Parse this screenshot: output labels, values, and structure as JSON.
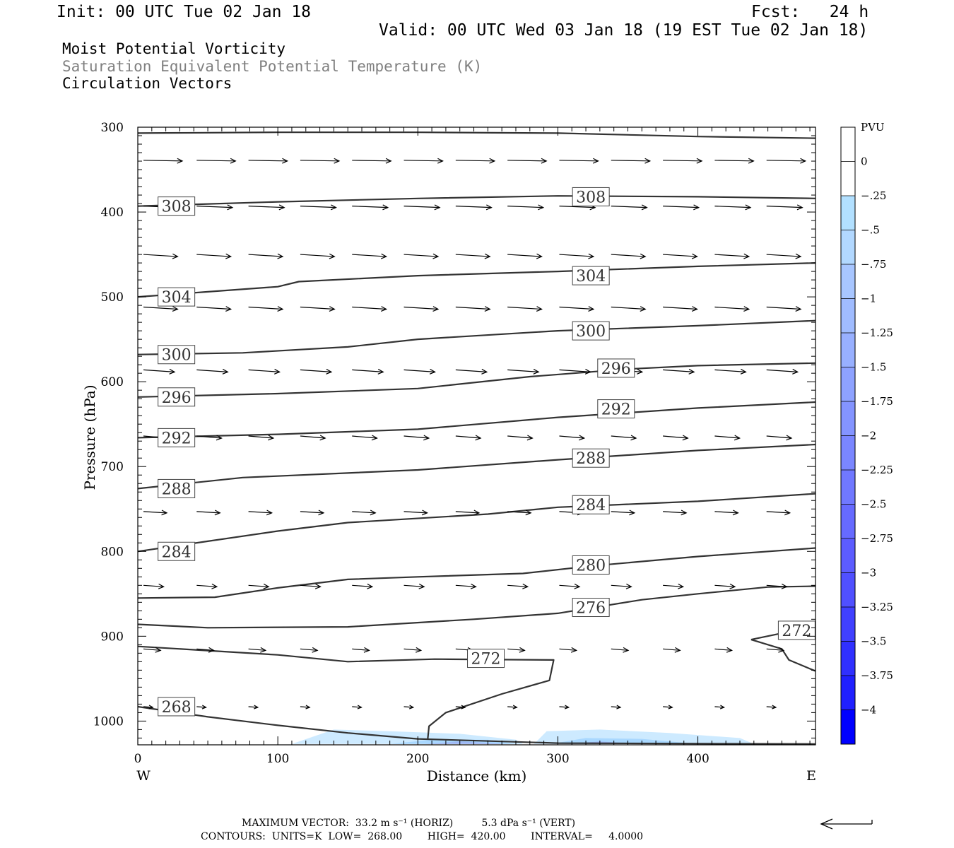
{
  "header": {
    "init": "Init: 00 UTC Tue 02 Jan 18",
    "fcst": "Fcst:   24 h",
    "valid": "Valid: 00 UTC Wed 03 Jan 18 (19 EST Tue 02 Jan 18)",
    "field1": "Moist Potential Vorticity",
    "field2": "Saturation Equivalent Potential Temperature (K)",
    "field3": "Circulation Vectors",
    "field2_color": "#808080"
  },
  "chart_data": {
    "type": "cross-section",
    "xlabel": "Distance (km)",
    "ylabel": "Pressure (hPa)",
    "xlim": [
      0,
      484
    ],
    "ylim": [
      1028,
      300
    ],
    "x_ticks": [
      0,
      100,
      200,
      300,
      400
    ],
    "y_ticks": [
      300,
      400,
      500,
      600,
      700,
      800,
      900,
      1000
    ],
    "x_end_labels": [
      "W",
      "E"
    ],
    "colorbar": {
      "title": "PVU",
      "labels": [
        "0",
        "-.25",
        "-.5",
        "-.75",
        "-1",
        "-1.25",
        "-1.5",
        "-1.75",
        "-2",
        "-2.25",
        "-2.5",
        "-2.75",
        "-3",
        "-3.25",
        "-3.5",
        "-3.75",
        "-4"
      ],
      "colors": [
        "#ffffff",
        "#ffffff",
        "#b2e0ff",
        "#b2d8ff",
        "#a8c6ff",
        "#a0bcff",
        "#98b0ff",
        "#8ea2ff",
        "#8494ff",
        "#7a86ff",
        "#7078ff",
        "#666aff",
        "#5c5cff",
        "#5050ff",
        "#4040ff",
        "#3030ff",
        "#2020ff",
        "#0000ff"
      ]
    },
    "contours": [
      {
        "level": "308",
        "label_at": [
          [
            19,
            393
          ],
          [
            315,
            382
          ]
        ],
        "points": [
          [
            0,
            393
          ],
          [
            100,
            388
          ],
          [
            200,
            384
          ],
          [
            300,
            381
          ],
          [
            400,
            382
          ],
          [
            484,
            384
          ]
        ]
      },
      {
        "level": "",
        "label_at": [],
        "points": [
          [
            0,
            307
          ],
          [
            100,
            306
          ],
          [
            200,
            306
          ],
          [
            300,
            307
          ],
          [
            400,
            311
          ],
          [
            484,
            313
          ]
        ]
      },
      {
        "level": "304",
        "label_at": [
          [
            19,
            500
          ],
          [
            315,
            475
          ]
        ],
        "points": [
          [
            0,
            500
          ],
          [
            50,
            494
          ],
          [
            100,
            488
          ],
          [
            115,
            482
          ],
          [
            200,
            475
          ],
          [
            300,
            470
          ],
          [
            400,
            464
          ],
          [
            484,
            460
          ]
        ]
      },
      {
        "level": "300",
        "label_at": [
          [
            19,
            568
          ],
          [
            315,
            540
          ]
        ],
        "points": [
          [
            0,
            568
          ],
          [
            75,
            566
          ],
          [
            150,
            559
          ],
          [
            200,
            550
          ],
          [
            300,
            540
          ],
          [
            400,
            534
          ],
          [
            484,
            528
          ]
        ]
      },
      {
        "level": "296",
        "label_at": [
          [
            19,
            618
          ],
          [
            333,
            584
          ]
        ],
        "points": [
          [
            0,
            618
          ],
          [
            100,
            614
          ],
          [
            200,
            608
          ],
          [
            280,
            594
          ],
          [
            350,
            585
          ],
          [
            400,
            581
          ],
          [
            484,
            578
          ]
        ]
      },
      {
        "level": "292",
        "label_at": [
          [
            19,
            666
          ],
          [
            333,
            632
          ]
        ],
        "points": [
          [
            0,
            666
          ],
          [
            100,
            662
          ],
          [
            200,
            656
          ],
          [
            300,
            642
          ],
          [
            400,
            631
          ],
          [
            484,
            624
          ]
        ]
      },
      {
        "level": "288",
        "label_at": [
          [
            19,
            726
          ],
          [
            315,
            690
          ]
        ],
        "points": [
          [
            0,
            726
          ],
          [
            75,
            713
          ],
          [
            200,
            704
          ],
          [
            300,
            692
          ],
          [
            400,
            681
          ],
          [
            484,
            674
          ]
        ]
      },
      {
        "level": "284",
        "label_at": [
          [
            19,
            800
          ],
          [
            315,
            745
          ]
        ],
        "points": [
          [
            0,
            800
          ],
          [
            50,
            788
          ],
          [
            100,
            776
          ],
          [
            150,
            766
          ],
          [
            250,
            756
          ],
          [
            300,
            748
          ],
          [
            400,
            741
          ],
          [
            484,
            732
          ]
        ]
      },
      {
        "level": "280",
        "label_at": [
          [
            315,
            816
          ]
        ],
        "points": [
          [
            0,
            855
          ],
          [
            55,
            854
          ],
          [
            100,
            843
          ],
          [
            150,
            833
          ],
          [
            200,
            830
          ],
          [
            275,
            826
          ],
          [
            325,
            817
          ],
          [
            400,
            806
          ],
          [
            484,
            796
          ]
        ]
      },
      {
        "level": "276",
        "label_at": [
          [
            315,
            866
          ]
        ],
        "points": [
          [
            0,
            886
          ],
          [
            50,
            890
          ],
          [
            150,
            889
          ],
          [
            240,
            880
          ],
          [
            300,
            873
          ],
          [
            360,
            857
          ],
          [
            400,
            850
          ],
          [
            450,
            842
          ],
          [
            484,
            841
          ]
        ]
      },
      {
        "level": "272",
        "label_at": [
          [
            240,
            926
          ],
          [
            462,
            893
          ]
        ],
        "points": [
          [
            0,
            912
          ],
          [
            100,
            922
          ],
          [
            150,
            930
          ],
          [
            212,
            927
          ],
          [
            297,
            928
          ],
          [
            294,
            952
          ],
          [
            260,
            968
          ],
          [
            220,
            990
          ],
          [
            208,
            1006
          ],
          [
            207,
            1022
          ]
        ]
      },
      {
        "level": "",
        "label_at": [],
        "points": [
          [
            438,
            904
          ],
          [
            470,
            893
          ],
          [
            484,
            885
          ]
        ]
      },
      {
        "level": "",
        "label_at": [],
        "points": [
          [
            438,
            904
          ],
          [
            460,
            915
          ],
          [
            465,
            928
          ],
          [
            484,
            941
          ]
        ]
      },
      {
        "level": "268",
        "label_at": [
          [
            19,
            983
          ]
        ],
        "points": [
          [
            0,
            983
          ],
          [
            50,
            995
          ],
          [
            100,
            1005
          ],
          [
            150,
            1014
          ],
          [
            200,
            1021
          ],
          [
            300,
            1026
          ],
          [
            484,
            1027
          ]
        ]
      }
    ],
    "vector_rows": [
      {
        "p": 339,
        "x": [
          0,
          38,
          75,
          112,
          149,
          186,
          223,
          260,
          297,
          334,
          371,
          408,
          445
        ],
        "dx": 25,
        "dy": 1
      },
      {
        "p": 393,
        "x": [
          0,
          38,
          75,
          112,
          149,
          186,
          223,
          260,
          297,
          334,
          371,
          408,
          445
        ],
        "dx": 23,
        "dy": 2
      },
      {
        "p": 450,
        "x": [
          0,
          38,
          75,
          112,
          149,
          186,
          223,
          260,
          297,
          334,
          371,
          408,
          445
        ],
        "dx": 22,
        "dy": 3
      },
      {
        "p": 512,
        "x": [
          0,
          38,
          75,
          112,
          149,
          186,
          223,
          260,
          297,
          334,
          371,
          408,
          445
        ],
        "dx": 22,
        "dy": 3
      },
      {
        "p": 586,
        "x": [
          0,
          38,
          75,
          112,
          149,
          186,
          223,
          260,
          297,
          334,
          371,
          408,
          445
        ],
        "dx": 20,
        "dy": 3
      },
      {
        "p": 664,
        "x": [
          0,
          38,
          75,
          112,
          149,
          186,
          223,
          260,
          297,
          334,
          371,
          408,
          445
        ],
        "dx": 16,
        "dy": 3
      },
      {
        "p": 753,
        "x": [
          0,
          38,
          75,
          112,
          149,
          186,
          223,
          260,
          297,
          334,
          371,
          408,
          445
        ],
        "dx": 15,
        "dy": 2
      },
      {
        "p": 840,
        "x": [
          0,
          38,
          75,
          112,
          149,
          186,
          223,
          260,
          297,
          334,
          371,
          408,
          445
        ],
        "dx": 13,
        "dy": 2
      },
      {
        "p": 915,
        "x": [
          0,
          38,
          75,
          112,
          149,
          186,
          223,
          260,
          297,
          334,
          371,
          408,
          445
        ],
        "dx": 11,
        "dy": 2
      },
      {
        "p": 983,
        "x": [
          0,
          38,
          75,
          112,
          149,
          186,
          223,
          260,
          297,
          334,
          371,
          408,
          445
        ],
        "dx": 6,
        "dy": 1
      }
    ],
    "pv_shading": [
      {
        "level": "-.25",
        "color": "#cdeaff",
        "points": [
          [
            110,
            1027
          ],
          [
            140,
            1010
          ],
          [
            180,
            1012
          ],
          [
            230,
            1015
          ],
          [
            270,
            1022
          ],
          [
            275,
            1027
          ]
        ]
      },
      {
        "level": "-.5",
        "color": "#a9d8ff",
        "points": [
          [
            180,
            1027
          ],
          [
            210,
            1022
          ],
          [
            250,
            1022
          ],
          [
            270,
            1027
          ]
        ]
      },
      {
        "level": "-.75",
        "color": "#9fb8f6",
        "points": [
          [
            205,
            1027
          ],
          [
            230,
            1024
          ],
          [
            255,
            1026
          ],
          [
            262,
            1027
          ]
        ]
      },
      {
        "level": "-.25",
        "color": "#cdeaff",
        "points": [
          [
            283,
            1027
          ],
          [
            292,
            1012
          ],
          [
            330,
            1010
          ],
          [
            380,
            1014
          ],
          [
            430,
            1020
          ],
          [
            440,
            1027
          ]
        ]
      },
      {
        "level": "-.5",
        "color": "#a9d8ff",
        "points": [
          [
            295,
            1027
          ],
          [
            320,
            1020
          ],
          [
            360,
            1021
          ],
          [
            400,
            1027
          ]
        ]
      },
      {
        "level": "-.75",
        "color": "#9fb8f6",
        "points": [
          [
            305,
            1027
          ],
          [
            330,
            1024
          ],
          [
            360,
            1027
          ]
        ]
      }
    ]
  },
  "footer": {
    "max_vector": "MAXIMUM VECTOR:  33.2 m s⁻¹ (HORIZ)         5.3 dPa s⁻¹ (VERT)",
    "contours": "CONTOURS:  UNITS=K  LOW=  268.00        HIGH=  420.00        INTERVAL=     4.0000"
  }
}
